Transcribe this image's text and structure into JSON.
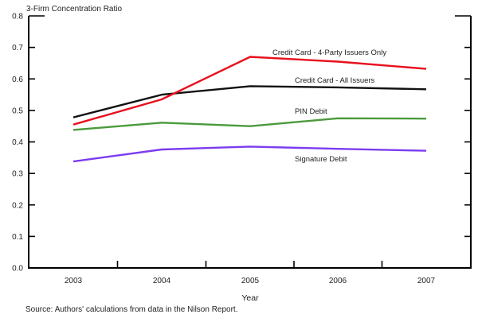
{
  "chart_data": {
    "type": "line",
    "title": "",
    "ylabel": "3-Firm Concentration Ratio",
    "xlabel": "Year",
    "ylim": [
      0.0,
      0.8
    ],
    "yticks": [
      "0.0",
      "0.1",
      "0.2",
      "0.3",
      "0.4",
      "0.5",
      "0.6",
      "0.7",
      "0.8"
    ],
    "categories": [
      "2003",
      "2004",
      "2005",
      "2006",
      "2007"
    ],
    "grid": false,
    "legend": "inline labels near lines",
    "series": [
      {
        "name": "Credit Card - 4-Party Issuers Only",
        "color": "#e8101e",
        "values": [
          0.455,
          0.535,
          0.67,
          0.655,
          0.632
        ]
      },
      {
        "name": "Credit Card - All Issuers",
        "color": "#111111",
        "values": [
          0.478,
          0.55,
          0.577,
          0.573,
          0.567
        ]
      },
      {
        "name": "PIN Debit",
        "color": "#4a9a3c",
        "values": [
          0.438,
          0.461,
          0.45,
          0.475,
          0.474
        ]
      },
      {
        "name": "Signature Debit",
        "color": "#7b3cf0",
        "values": [
          0.338,
          0.376,
          0.385,
          0.378,
          0.372
        ]
      }
    ],
    "source": "Source: Authors' calculations from data in the Nilson Report."
  }
}
